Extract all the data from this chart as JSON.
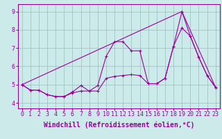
{
  "background_color": "#cceaea",
  "line_color": "#990099",
  "grid_color": "#99bbbb",
  "xlabel": "Windchill (Refroidissement éolien,°C)",
  "xlabel_fontsize": 7,
  "tick_fontsize": 6,
  "ylim": [
    3.7,
    9.4
  ],
  "xlim": [
    -0.5,
    23.5
  ],
  "yticks": [
    4,
    5,
    6,
    7,
    8,
    9
  ],
  "xticks": [
    0,
    1,
    2,
    3,
    4,
    5,
    6,
    7,
    8,
    9,
    10,
    11,
    12,
    13,
    14,
    15,
    16,
    17,
    18,
    19,
    20,
    21,
    22,
    23
  ],
  "line1_x": [
    0,
    1,
    2,
    3,
    4,
    5,
    6,
    7,
    8,
    9,
    10,
    11,
    12,
    13,
    14,
    15,
    16,
    17,
    18,
    19,
    20,
    21,
    22,
    23
  ],
  "line1_y": [
    5.0,
    4.7,
    4.7,
    4.45,
    4.35,
    4.35,
    4.55,
    4.65,
    4.65,
    4.65,
    5.35,
    5.45,
    5.5,
    5.55,
    5.5,
    5.05,
    5.05,
    5.35,
    7.1,
    8.1,
    7.65,
    6.5,
    5.5,
    4.85
  ],
  "line2_x": [
    0,
    1,
    2,
    3,
    4,
    5,
    6,
    7,
    8,
    9,
    10,
    11,
    12,
    13,
    14,
    15,
    16,
    17,
    18,
    19,
    20,
    21,
    22,
    23
  ],
  "line2_y": [
    5.0,
    4.7,
    4.7,
    4.45,
    4.35,
    4.35,
    4.6,
    4.95,
    4.65,
    4.95,
    6.55,
    7.35,
    7.35,
    6.85,
    6.85,
    5.05,
    5.05,
    5.35,
    7.1,
    9.0,
    7.65,
    6.5,
    5.5,
    4.85
  ],
  "line3_x": [
    0,
    19,
    23
  ],
  "line3_y": [
    5.0,
    9.0,
    4.85
  ]
}
